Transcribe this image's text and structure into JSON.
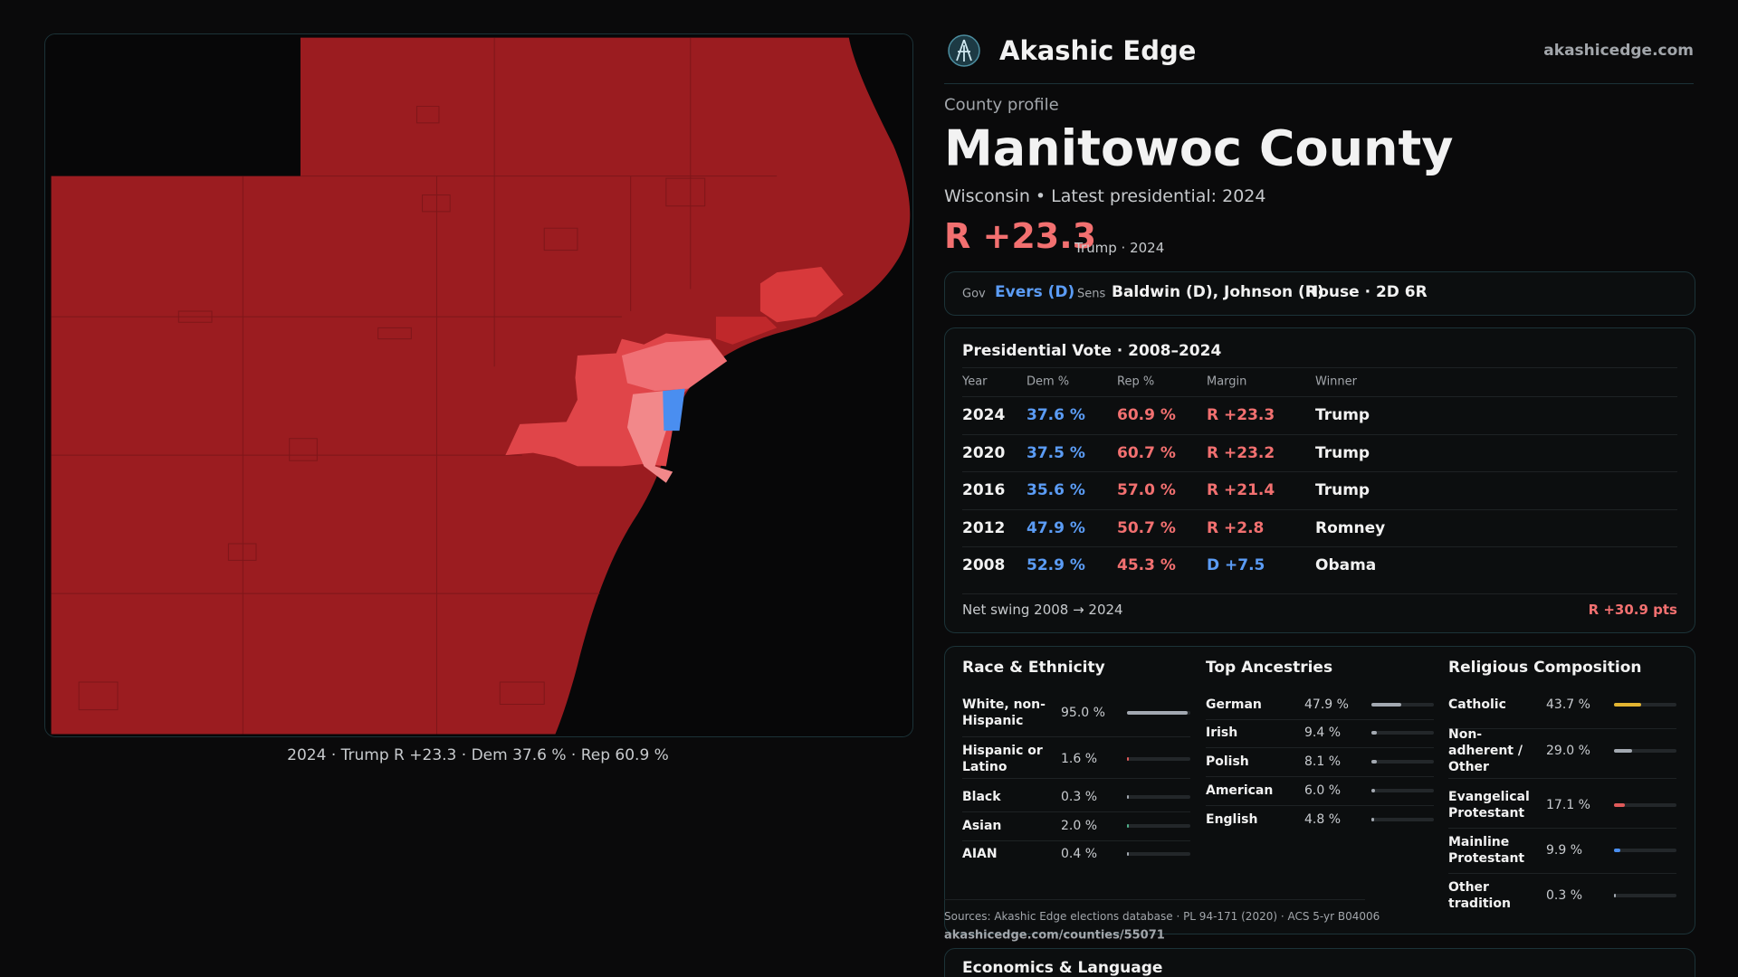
{
  "header": {
    "brand": "Akashic Edge",
    "site": "akashicedge.com"
  },
  "map": {
    "caption": "2024 · Trump R +23.3 · Dem 37.6 % · Rep 60.9 %"
  },
  "profile": {
    "kicker": "County profile",
    "title": "Manitowoc County",
    "subtitle": "Wisconsin • Latest presidential: 2024",
    "margin": "R +23.3",
    "margin_note": "Trump · 2024"
  },
  "officials": {
    "gov_label": "Gov",
    "gov": "Evers (D)",
    "sens_label": "Sens",
    "sens": "Baldwin (D), Johnson (R)",
    "house": "House · 2D 6R"
  },
  "presidential": {
    "title": "Presidential Vote · 2008–2024",
    "columns": [
      "Year",
      "Dem %",
      "Rep %",
      "Margin",
      "Winner"
    ],
    "rows": [
      [
        "2024",
        "37.6 %",
        "60.9 %",
        "R +23.3",
        "Trump"
      ],
      [
        "2020",
        "37.5 %",
        "60.7 %",
        "R +23.2",
        "Trump"
      ],
      [
        "2016",
        "35.6 %",
        "57.0 %",
        "R +21.4",
        "Trump"
      ],
      [
        "2012",
        "47.9 %",
        "50.7 %",
        "R +2.8",
        "Romney"
      ],
      [
        "2008",
        "52.9 %",
        "45.3 %",
        "D +7.5",
        "Obama"
      ]
    ],
    "swing_label": "Net swing 2008 → 2024",
    "swing": "R +30.9 pts"
  },
  "race": {
    "title": "Race & Ethnicity",
    "items": [
      {
        "name": "White, non-Hispanic",
        "value": 95.0,
        "value_label": "95.0 %",
        "color": "#a3a9b1"
      },
      {
        "name": "Hispanic or Latino",
        "value": 1.6,
        "value_label": "1.6 %",
        "color": "#e05a5a"
      },
      {
        "name": "Black",
        "value": 0.3,
        "value_label": "0.3 %",
        "color": "#a3a9b1"
      },
      {
        "name": "Asian",
        "value": 2.0,
        "value_label": "2.0 %",
        "color": "#4fb08a"
      },
      {
        "name": "AIAN",
        "value": 0.4,
        "value_label": "0.4 %",
        "color": "#a3a9b1"
      }
    ]
  },
  "ancestry": {
    "title": "Top Ancestries",
    "items": [
      {
        "name": "German",
        "value": 47.9,
        "value_label": "47.9 %",
        "color": "#a3a9b1"
      },
      {
        "name": "Irish",
        "value": 9.4,
        "value_label": "9.4 %",
        "color": "#a3a9b1"
      },
      {
        "name": "Polish",
        "value": 8.1,
        "value_label": "8.1 %",
        "color": "#a3a9b1"
      },
      {
        "name": "American",
        "value": 6.0,
        "value_label": "6.0 %",
        "color": "#a3a9b1"
      },
      {
        "name": "English",
        "value": 4.8,
        "value_label": "4.8 %",
        "color": "#a3a9b1"
      }
    ]
  },
  "religion": {
    "title": "Religious Composition",
    "items": [
      {
        "name": "Catholic",
        "value": 43.7,
        "value_label": "43.7 %",
        "color": "#e3b531"
      },
      {
        "name": "Non-adherent / Other",
        "value": 29.0,
        "value_label": "29.0 %",
        "color": "#a3a9b1"
      },
      {
        "name": "Evangelical Protestant",
        "value": 17.1,
        "value_label": "17.1 %",
        "color": "#e05a5a"
      },
      {
        "name": "Mainline Protestant",
        "value": 9.9,
        "value_label": "9.9 %",
        "color": "#4a8ef0"
      },
      {
        "name": "Other tradition",
        "value": 0.3,
        "value_label": "0.3 %",
        "color": "#a3a9b1"
      }
    ]
  },
  "sources": {
    "text": "Sources: Akashic Edge elections database · PL 94-171 (2020) · ACS 5-yr B04006",
    "url": "akashicedge.com/counties/55071"
  },
  "economics": {
    "title": "Economics & Language"
  }
}
